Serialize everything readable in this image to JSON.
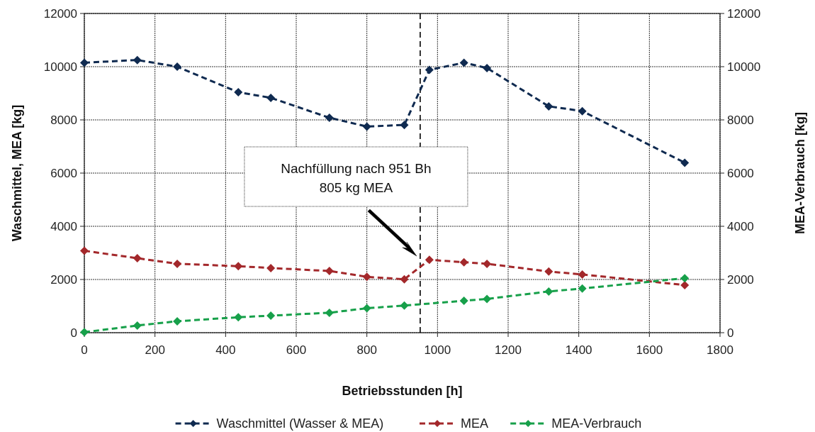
{
  "chart_data": {
    "type": "line",
    "xlabel": "Betriebsstunden [h]",
    "ylabel": "Waschmittel, MEA [kg]",
    "y2label": "MEA-Verbrauch [kg]",
    "xlim": [
      0,
      1800
    ],
    "xticks": [
      0,
      200,
      400,
      600,
      800,
      1000,
      1200,
      1400,
      1600,
      1800
    ],
    "ylim": [
      0,
      12000
    ],
    "yticks": [
      0,
      2000,
      4000,
      6000,
      8000,
      10000,
      12000
    ],
    "y2lim": [
      0,
      12000
    ],
    "y2ticks": [
      0,
      2000,
      4000,
      6000,
      8000,
      10000,
      12000
    ],
    "grid": true,
    "legend": "bottom",
    "marker": "diamond",
    "line_style": "dashed",
    "ref_lines": [
      {
        "axis": "x",
        "value": 951,
        "color": "#000000",
        "line_style": "dashed"
      }
    ],
    "annotations": [
      "Nachfüllung nach 951 Bh\n805 kg MEA"
    ],
    "series": [
      {
        "name": "Waschmittel (Wasser & MEA)",
        "color": "#0f2a50",
        "x": [
          0,
          150,
          263,
          436,
          528,
          694,
          800,
          906,
          977,
          1075,
          1140,
          1315,
          1410,
          1700
        ],
        "values": [
          10150,
          10250,
          10000,
          9040,
          8830,
          8080,
          7750,
          7810,
          9880,
          10150,
          9950,
          8510,
          8330,
          6390
        ]
      },
      {
        "name": "MEA",
        "color": "#a3282b",
        "x": [
          0,
          150,
          263,
          436,
          528,
          694,
          800,
          906,
          977,
          1075,
          1140,
          1315,
          1410,
          1700
        ],
        "values": [
          3080,
          2800,
          2590,
          2500,
          2430,
          2320,
          2100,
          2010,
          2740,
          2650,
          2590,
          2300,
          2190,
          1790
        ]
      },
      {
        "name": "MEA-Verbrauch",
        "color": "#17a04a",
        "axis": "y2",
        "x": [
          0,
          150,
          263,
          436,
          528,
          694,
          800,
          906,
          1075,
          1140,
          1315,
          1410,
          1700
        ],
        "values": [
          20,
          270,
          430,
          580,
          640,
          750,
          920,
          1020,
          1200,
          1270,
          1550,
          1660,
          2050
        ]
      }
    ]
  }
}
